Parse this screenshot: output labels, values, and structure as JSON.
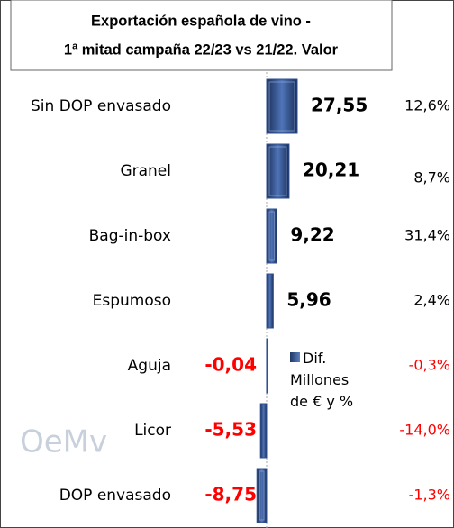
{
  "chart_data": {
    "type": "hbar",
    "title": [
      "Exportación española de vino -",
      "1ª mitad campaña 22/23 vs 21/22. Valor"
    ],
    "categories": [
      "Sin DOP envasado",
      "Granel",
      "Bag-in-box",
      "Espumoso",
      "Aguja",
      "Licor",
      "DOP envasado"
    ],
    "series": [
      {
        "name": "Dif. Millones de € y %",
        "color": "#2f4f8f",
        "values": [
          27.55,
          20.21,
          9.22,
          5.96,
          -0.04,
          -5.53,
          -8.75
        ],
        "value_labels": [
          "27,55",
          "20,21",
          "9,22",
          "5,96",
          "-0,04",
          "-5,53",
          "-8,75"
        ]
      }
    ],
    "annotations": [
      "12,6%",
      "8,7%",
      "31,4%",
      "2,4%",
      "-0,3%",
      "-14,0%",
      "-1,3%"
    ],
    "negative_color": "#ff0000",
    "watermark": "OeMv"
  }
}
